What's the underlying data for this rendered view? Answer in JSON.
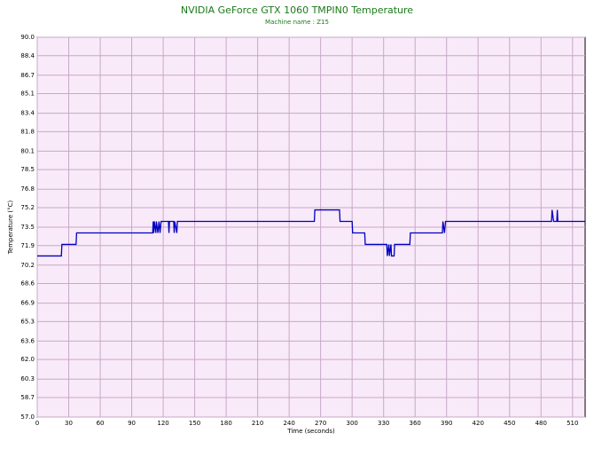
{
  "chart_data": {
    "type": "line",
    "title": "NVIDIA GeForce GTX 1060 TMPIN0 Temperature",
    "subtitle": "Machine name : Z15",
    "x_label": "Time (seconds)",
    "y_label": "Temperature (°C)",
    "xlim": [
      0,
      522
    ],
    "xticks": [
      0,
      30,
      60,
      90,
      120,
      150,
      180,
      210,
      240,
      270,
      300,
      330,
      360,
      390,
      420,
      450,
      480,
      510
    ],
    "ylim": [
      57,
      90
    ],
    "yticks": [
      {
        "value": 57,
        "label": "57.0"
      },
      {
        "value": 58.7,
        "label": "58.7"
      },
      {
        "value": 60.3,
        "label": "60.3"
      },
      {
        "value": 62,
        "label": "62.0"
      },
      {
        "value": 63.6,
        "label": "63.6"
      },
      {
        "value": 65.3,
        "label": "65.3"
      },
      {
        "value": 66.9,
        "label": "66.9"
      },
      {
        "value": 68.6,
        "label": "68.6"
      },
      {
        "value": 70.2,
        "label": "70.2"
      },
      {
        "value": 71.9,
        "label": "71.9"
      },
      {
        "value": 73.5,
        "label": "73.5"
      },
      {
        "value": 75.2,
        "label": "75.2"
      },
      {
        "value": 76.8,
        "label": "76.8"
      },
      {
        "value": 78.5,
        "label": "78.5"
      },
      {
        "value": 80.1,
        "label": "80.1"
      },
      {
        "value": 81.8,
        "label": "81.8"
      },
      {
        "value": 83.4,
        "label": "83.4"
      },
      {
        "value": 85.1,
        "label": "85.1"
      },
      {
        "value": 86.7,
        "label": "86.7"
      },
      {
        "value": 88.4,
        "label": "88.4"
      },
      {
        "value": 90,
        "label": "90.0"
      }
    ],
    "grid": true,
    "x": [
      0,
      23,
      23.5,
      37,
      37.5,
      110,
      110.5,
      111,
      111.5,
      113,
      113.5,
      115,
      116,
      117,
      118,
      125,
      125.5,
      126,
      130,
      130.5,
      131,
      133,
      133.5,
      264,
      264.5,
      288,
      288.5,
      300,
      300.5,
      312,
      312.5,
      333,
      333.5,
      335,
      335.5,
      337,
      337.5,
      340,
      340.5,
      355,
      355.5,
      386,
      386.5,
      388,
      389,
      490,
      490.5,
      492,
      492.5,
      495,
      495.5,
      496,
      522
    ],
    "series": [
      {
        "name": "TMPIN0",
        "color": "#0000c0",
        "values": [
          71,
          71,
          72,
          72,
          73,
          73,
          74,
          73,
          74,
          73,
          74,
          73,
          74,
          73,
          74,
          74,
          73,
          74,
          74,
          73,
          74,
          73,
          74,
          74,
          75,
          75,
          74,
          74,
          73,
          73,
          72,
          72,
          71,
          72,
          71,
          72,
          71,
          71,
          72,
          72,
          73,
          73,
          74,
          73,
          74,
          74,
          75,
          74,
          74,
          74,
          75,
          74,
          74
        ]
      }
    ]
  }
}
